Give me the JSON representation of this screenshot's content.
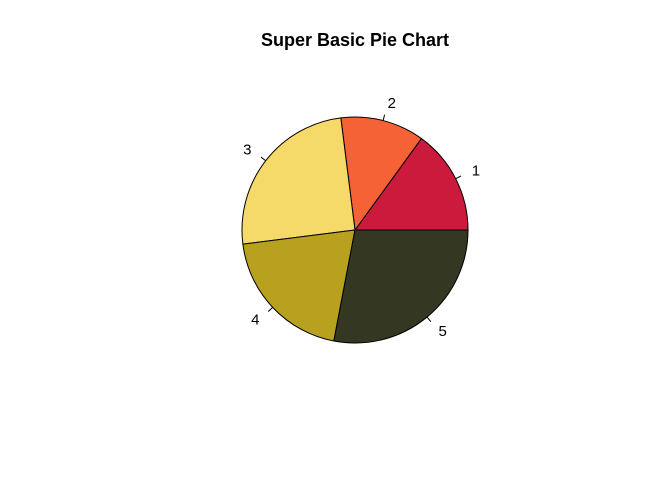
{
  "chart_data": {
    "type": "pie",
    "title": "Super Basic Pie Chart",
    "categories": [
      "1",
      "2",
      "3",
      "4",
      "5"
    ],
    "values": [
      0.15,
      0.12,
      0.25,
      0.2,
      0.28
    ],
    "colors": [
      "#CC1A3D",
      "#F56236",
      "#F5DA6A",
      "#B9A120",
      "#343822"
    ],
    "start_angle_deg": 0,
    "direction": "counterclockwise"
  }
}
